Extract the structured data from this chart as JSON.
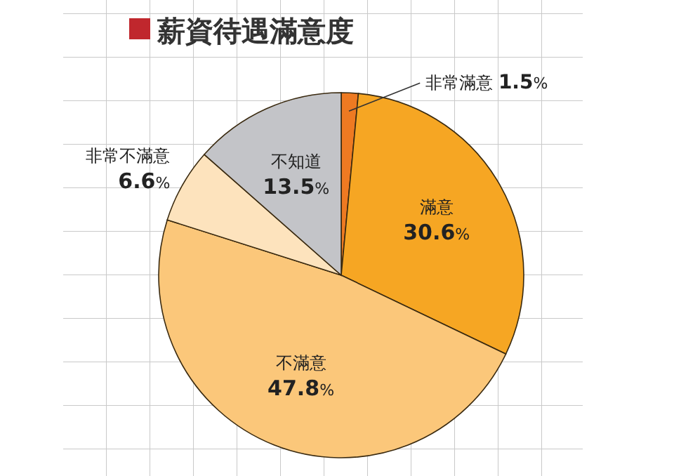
{
  "chart_data": {
    "type": "pie",
    "title": "薪資待遇滿意度",
    "categories": [
      "非常滿意",
      "滿意",
      "不滿意",
      "非常不滿意",
      "不知道"
    ],
    "values": [
      1.5,
      30.6,
      47.8,
      6.6,
      13.5
    ],
    "colors": [
      "#ee7a22",
      "#f6a623",
      "#fbc77a",
      "#fde3bd",
      "#c3c4c8"
    ],
    "value_labels": [
      "1.5%",
      "30.6%",
      "47.8%",
      "6.6%",
      "13.5%"
    ]
  }
}
